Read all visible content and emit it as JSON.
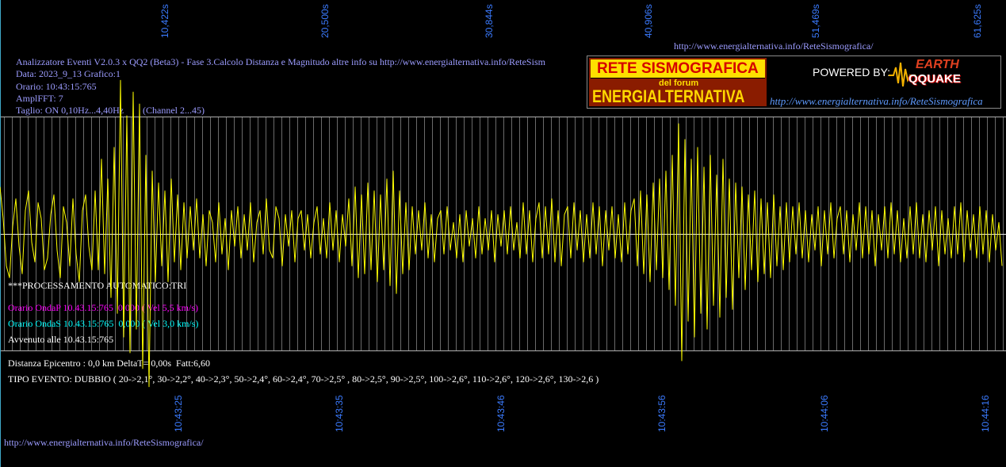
{
  "header_url": "http://www.energialternativa.info/ReteSismografica/",
  "info": {
    "title_line": "Analizzatore Eventi V2.0.3 x QQ2 (Beta3) - Fase 3.Calcolo Distanza e Magnitudo altre info su http://www.energialternativa.info/ReteSism",
    "data": "Data: 2023_9_13 Grafico:1",
    "orario": "Orario: 10:43:15:765",
    "ampl": "AmplFFT: 7",
    "taglio": "Taglio: ON 0,10Hz...4,40Hz",
    "channel": "(Channel 2...45)"
  },
  "logo": {
    "title": "RETE SISMOGRAFICA",
    "subtitle": "del forum",
    "name": "ENERGIALTERNATIVA",
    "powered_by": "POWERED BY:",
    "brand_top": "EARTH",
    "brand_bottom": "QQUAKE",
    "url": "http://www.energialternativa.info/ReteSismografica"
  },
  "results": {
    "processing": "***PROCESSAMENTO AUTOMATICO:TRI",
    "onda_p": "Orario OndaP 10.43.15:765  0,000 ( Vel 5,5 km/s)",
    "onda_s": "Orario OndaS 10.43.15:765  0,000 ( Vel 3,0 km/s)",
    "avvenuto": "Avvenuto alle 10.43.15:765",
    "distanza": "Distanza Epicentro : 0,0 km DeltaT= 0,00s  Fatt:6,60",
    "tipo_evento": "TIPO EVENTO: DUBBIO ( 20->2,1°, 30->2,2°, 40->2,3°, 50->2,4°, 60->2,4°, 70->2,5° , 80->2,5°, 90->2,5°, 100->2,6°, 110->2,6°, 120->2,6°, 130->2,6 )"
  },
  "footer_url": "http://www.energialternativa.info/ReteSismografica/",
  "colors": {
    "background": "#000000",
    "waveform": "#ffff00",
    "grid": "#6a6a6a",
    "frame": "#b0b0b0",
    "center_line": "#e8e8e8",
    "axis_labels": "#3b7bff",
    "info_text": "#9c9cff",
    "onda_p": "#ff00ff",
    "onda_s": "#00ffff"
  },
  "chart_data": {
    "type": "line",
    "title": "",
    "xlabel": "",
    "ylabel": "",
    "x_unit": "s",
    "grid": true,
    "top_ticks": [
      {
        "value": 10.422,
        "label": "10,422s"
      },
      {
        "value": 20.5,
        "label": "20,500s"
      },
      {
        "value": 30.844,
        "label": "30,844s"
      },
      {
        "value": 40.906,
        "label": "40,906s"
      },
      {
        "value": 51.469,
        "label": "51,469s"
      },
      {
        "value": 61.625,
        "label": "61,625s"
      }
    ],
    "bottom_ticks": [
      "10:43:25",
      "10:43:35",
      "10:43:46",
      "10:43:56",
      "10:44:06",
      "10:44:16"
    ],
    "t0": 0,
    "dt": 0.2,
    "ylim": [
      -148,
      148
    ],
    "series": [
      {
        "values": [
          60,
          20,
          -40,
          -55,
          10,
          45,
          -15,
          -50,
          30,
          55,
          -10,
          -35,
          40,
          20,
          -45,
          -30,
          25,
          50,
          -20,
          -55,
          35,
          15,
          -40,
          45,
          -25,
          -60,
          30,
          50,
          -15,
          -45,
          55,
          -45,
          95,
          -50,
          70,
          -80,
          110,
          -100,
          195,
          -130,
          150,
          -150,
          180,
          -120,
          165,
          -170,
          100,
          -193,
          80,
          -60,
          65,
          -40,
          55,
          -60,
          70,
          -35,
          50,
          -45,
          40,
          -30,
          35,
          -20,
          45,
          -30,
          25,
          -40,
          30,
          15,
          -35,
          40,
          -25,
          20,
          -45,
          30,
          -15,
          35,
          -30,
          25,
          -20,
          40,
          -35,
          15,
          30,
          -25,
          45,
          -20,
          -30,
          35,
          20,
          -40,
          25,
          -15,
          30,
          -35,
          20,
          30,
          -20,
          25,
          -30,
          15,
          35,
          -25,
          20,
          -30,
          40,
          -20,
          30,
          -35,
          25,
          -15,
          45,
          -40,
          60,
          -55,
          50,
          -50,
          65,
          -45,
          55,
          -60,
          50,
          -45,
          70,
          -65,
          80,
          -75,
          55,
          -50,
          40,
          -45,
          35,
          -25,
          30,
          -20,
          40,
          -30,
          25,
          -35,
          20,
          30,
          -25,
          35,
          -20,
          15,
          -30,
          25,
          -35,
          30,
          -15,
          20,
          -30,
          35,
          -25,
          20,
          -20,
          30,
          -35,
          25,
          -15,
          30,
          -25,
          35,
          -20,
          15,
          -30,
          40,
          -25,
          30,
          -35,
          20,
          40,
          -30,
          35,
          -25,
          45,
          -35,
          30,
          -40,
          25,
          35,
          -30,
          40,
          -20,
          30,
          -35,
          25,
          -30,
          40,
          -25,
          35,
          -40,
          30,
          -20,
          35,
          -30,
          25,
          -35,
          40,
          -25,
          30,
          45,
          -40,
          55,
          -50,
          50,
          -60,
          65,
          -45,
          70,
          -55,
          80,
          -70,
          100,
          -90,
          140,
          -160,
          120,
          -110,
          95,
          -130,
          110,
          -100,
          85,
          -120,
          100,
          -90,
          75,
          -105,
          95,
          -80,
          70,
          -95,
          65,
          -55,
          60,
          -70,
          50,
          -45,
          55,
          -60,
          45,
          -50,
          40,
          -55,
          50,
          -40,
          35,
          -45,
          40,
          -35,
          35,
          -25,
          40,
          -30,
          30,
          -35,
          25,
          -20,
          35,
          -40,
          30,
          -25,
          40,
          -30,
          20,
          35,
          -25,
          30,
          -35,
          25,
          -20,
          40,
          -30,
          35,
          -25,
          30,
          -40,
          25,
          -20,
          35,
          -30,
          40,
          -25,
          30,
          -35,
          20,
          -30,
          35,
          -25,
          40,
          -30,
          25,
          -35,
          30,
          -20,
          35,
          -40,
          30,
          -25,
          20,
          -30,
          35,
          -25,
          40,
          -35,
          30,
          -20,
          25,
          -30,
          35,
          -25,
          30,
          -35,
          25,
          -20,
          15,
          -40
        ]
      }
    ]
  }
}
